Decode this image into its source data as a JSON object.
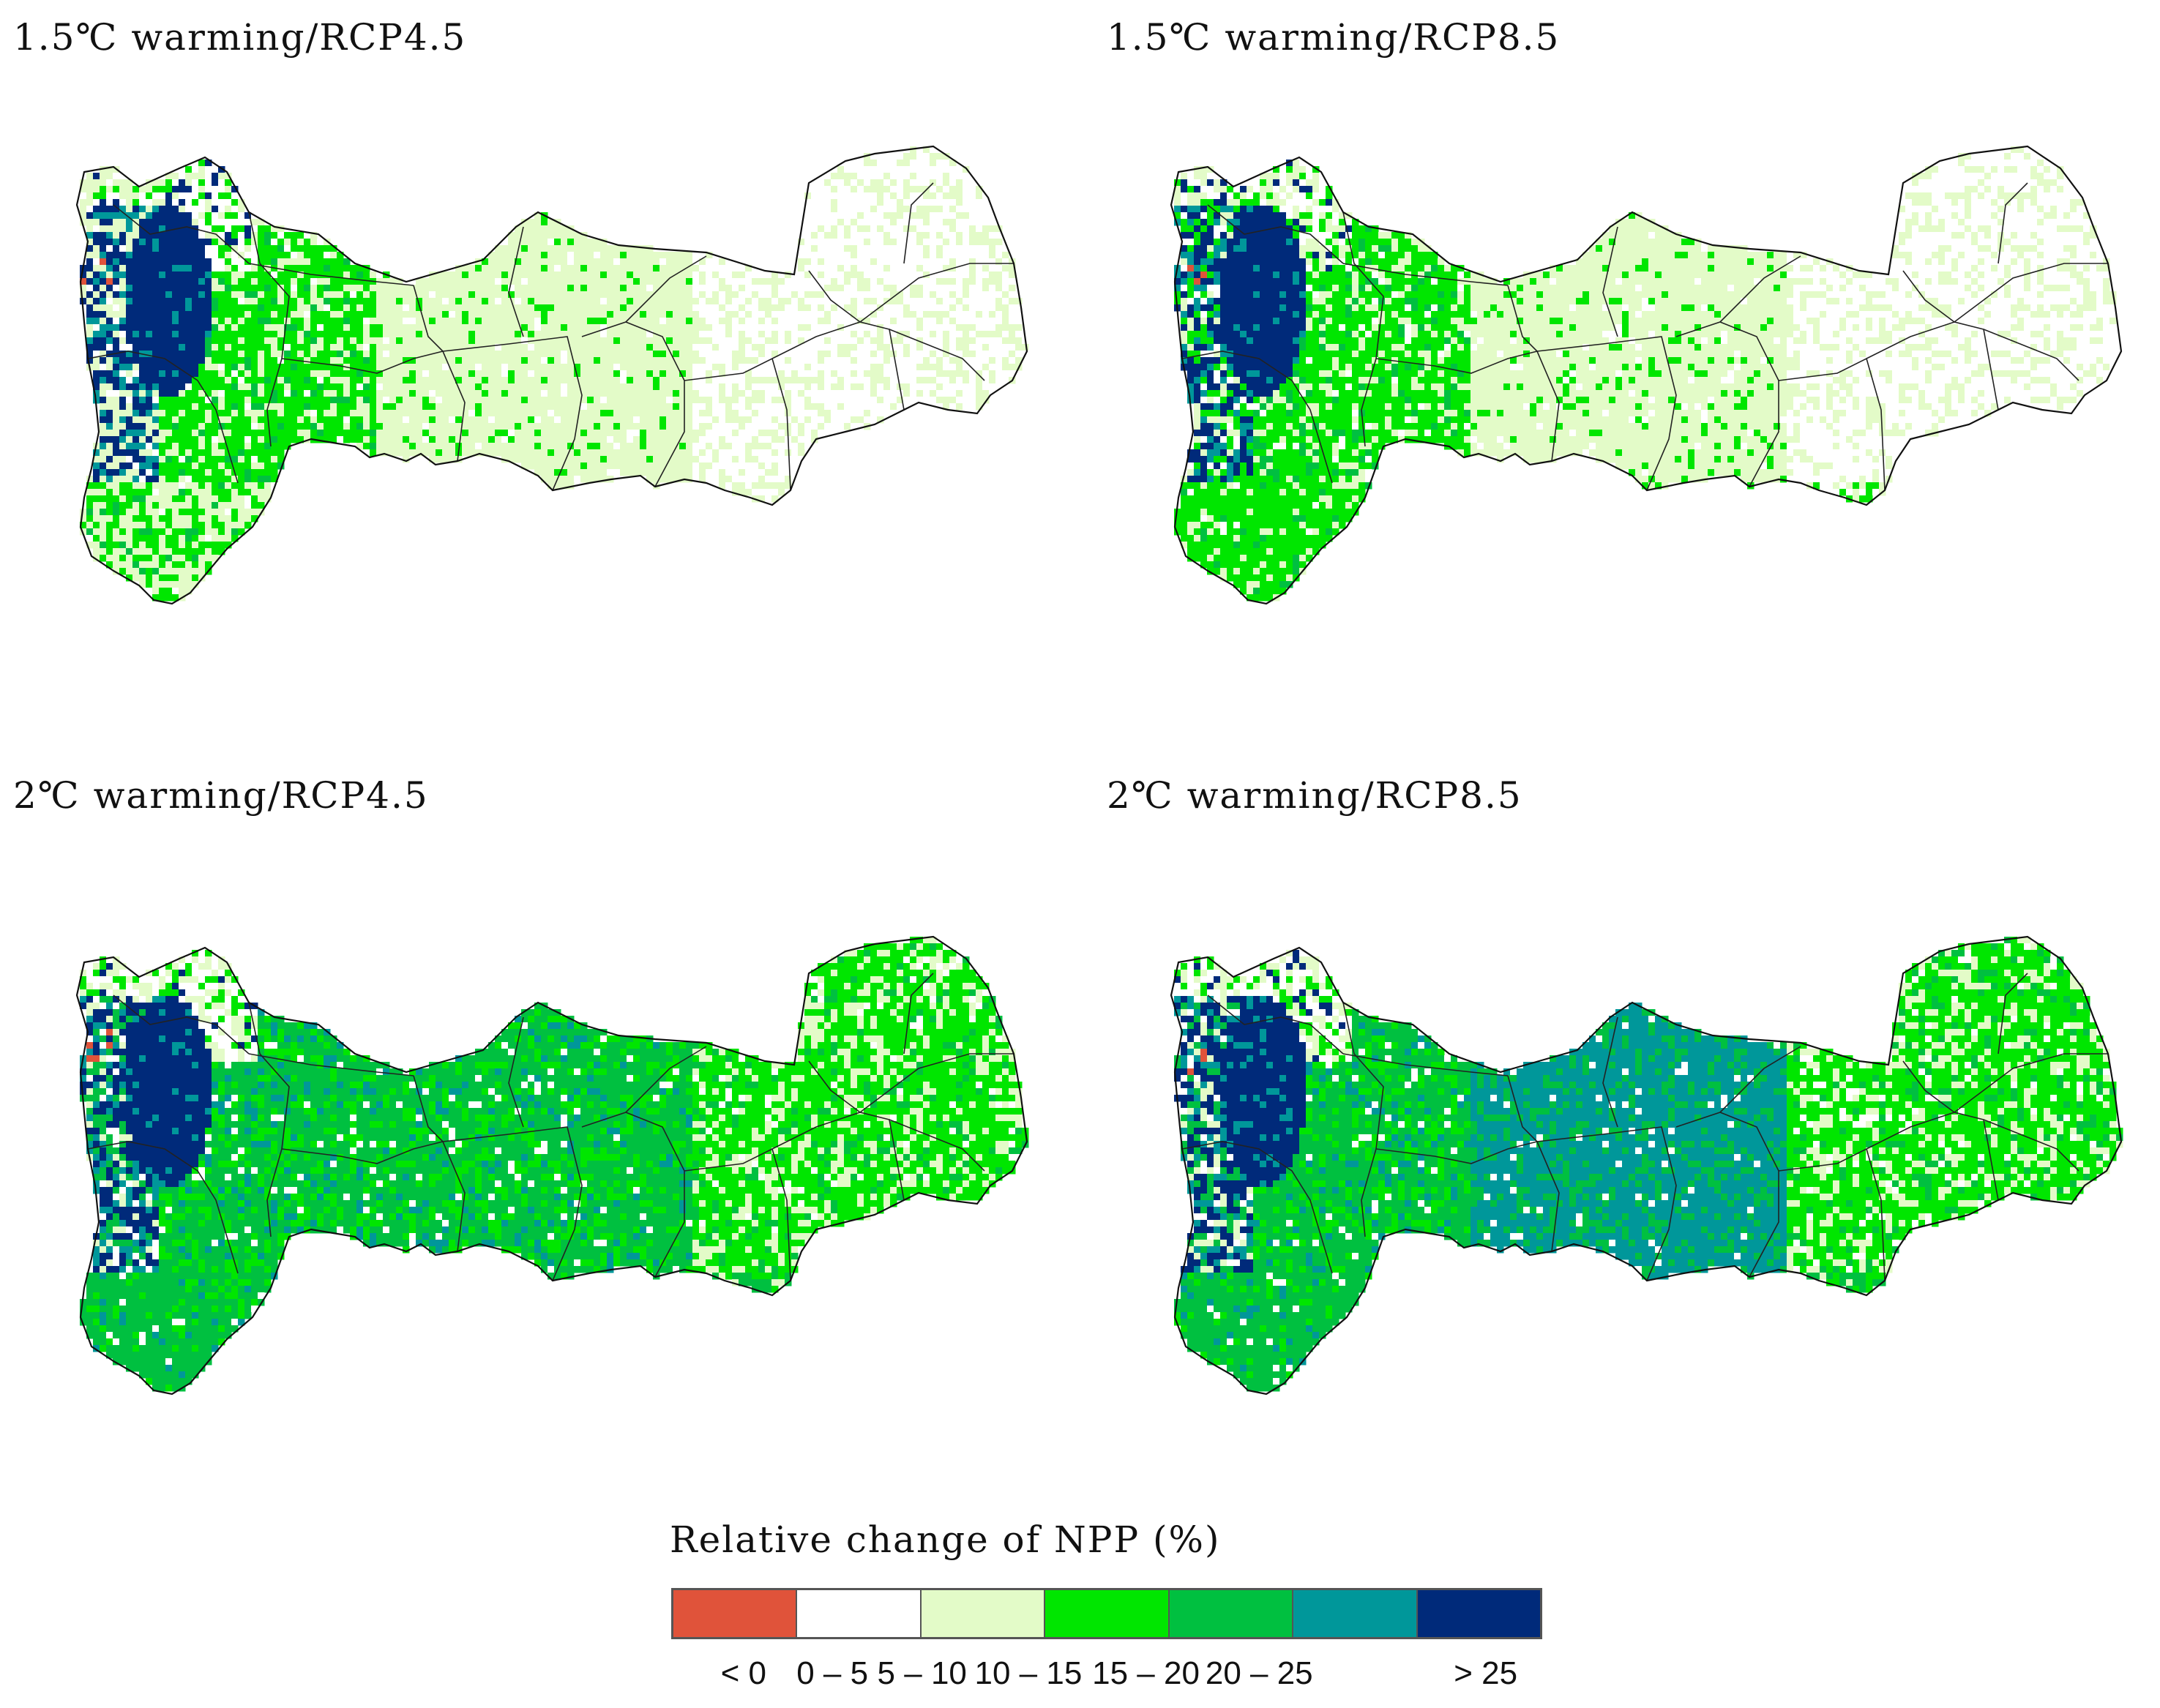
{
  "panels": [
    {
      "title": "1.5℃ warming/RCP4.5",
      "scheme": [
        2,
        3,
        2,
        1
      ]
    },
    {
      "title": "1.5℃ warming/RCP8.5",
      "scheme": [
        3,
        3,
        2,
        1
      ]
    },
    {
      "title": "2℃ warming/RCP4.5",
      "scheme": [
        4,
        4,
        4,
        3
      ]
    },
    {
      "title": "2℃ warming/RCP8.5",
      "scheme": [
        4,
        4,
        5,
        3
      ]
    }
  ],
  "legend": {
    "title": "Relative change of NPP (%)",
    "classes": [
      {
        "label": "< 0",
        "color": "#e0533a"
      },
      {
        "label": "0 – 5",
        "color": "#ffffff"
      },
      {
        "label": "5 – 10",
        "color": "#e3fbc8"
      },
      {
        "label": "10 – 15",
        "color": "#00e600"
      },
      {
        "label": "15 – 20",
        "color": "#00c040"
      },
      {
        "label": "20 – 25",
        "color": "#00979a"
      },
      {
        "label": "> 25",
        "color": "#002a7a"
      }
    ]
  }
}
